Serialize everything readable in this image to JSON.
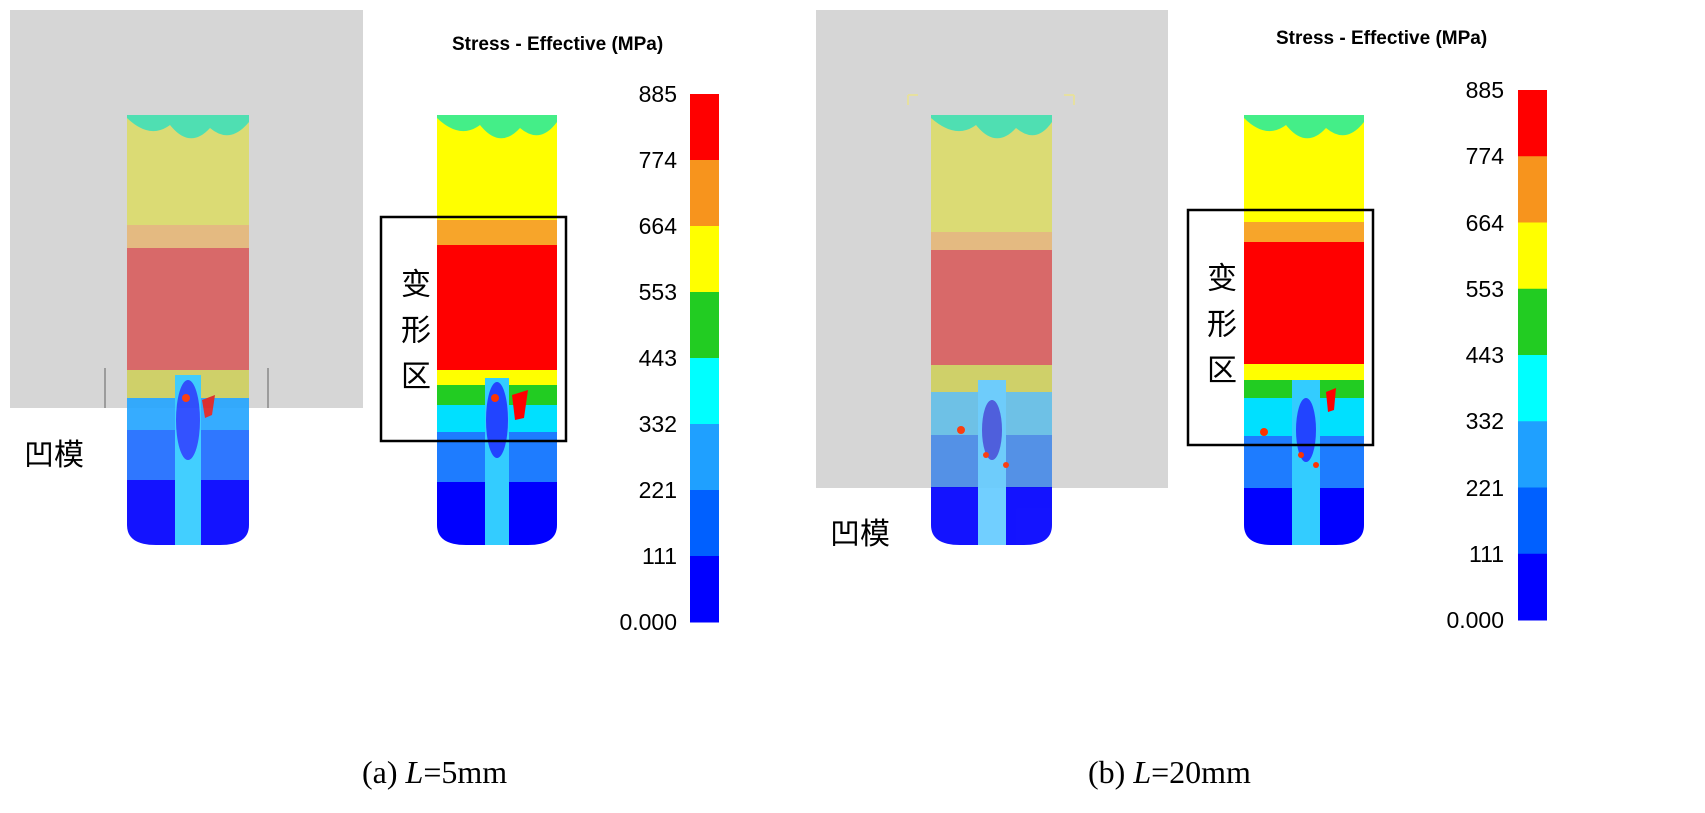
{
  "panels": [
    {
      "label": "(a) L=5mm",
      "caption_prefix": "(a) ",
      "caption_var": "L",
      "caption_suffix": "=5mm",
      "die_label": "凹模",
      "zone_label": "变形区",
      "legend_title": "Stress - Effective (MPa)"
    },
    {
      "label": "(b) L=20mm",
      "caption_prefix": "(b) ",
      "caption_var": "L",
      "caption_suffix": "=20mm",
      "die_label": "凹模",
      "zone_label": "变形区",
      "legend_title": "Stress - Effective (MPa)"
    }
  ],
  "legend": {
    "ticks": [
      "885",
      "774",
      "664",
      "553",
      "443",
      "332",
      "221",
      "111",
      "0.000"
    ],
    "colors": [
      "#ff0000",
      "#f7941d",
      "#ffff00",
      "#22cc22",
      "#00ffff",
      "#1fa0ff",
      "#0060ff",
      "#0000ff"
    ]
  },
  "colors": {
    "die_gray": "#d6d6d6",
    "red_zone": "#ff0000",
    "yellow_zone": "#ffff00"
  }
}
